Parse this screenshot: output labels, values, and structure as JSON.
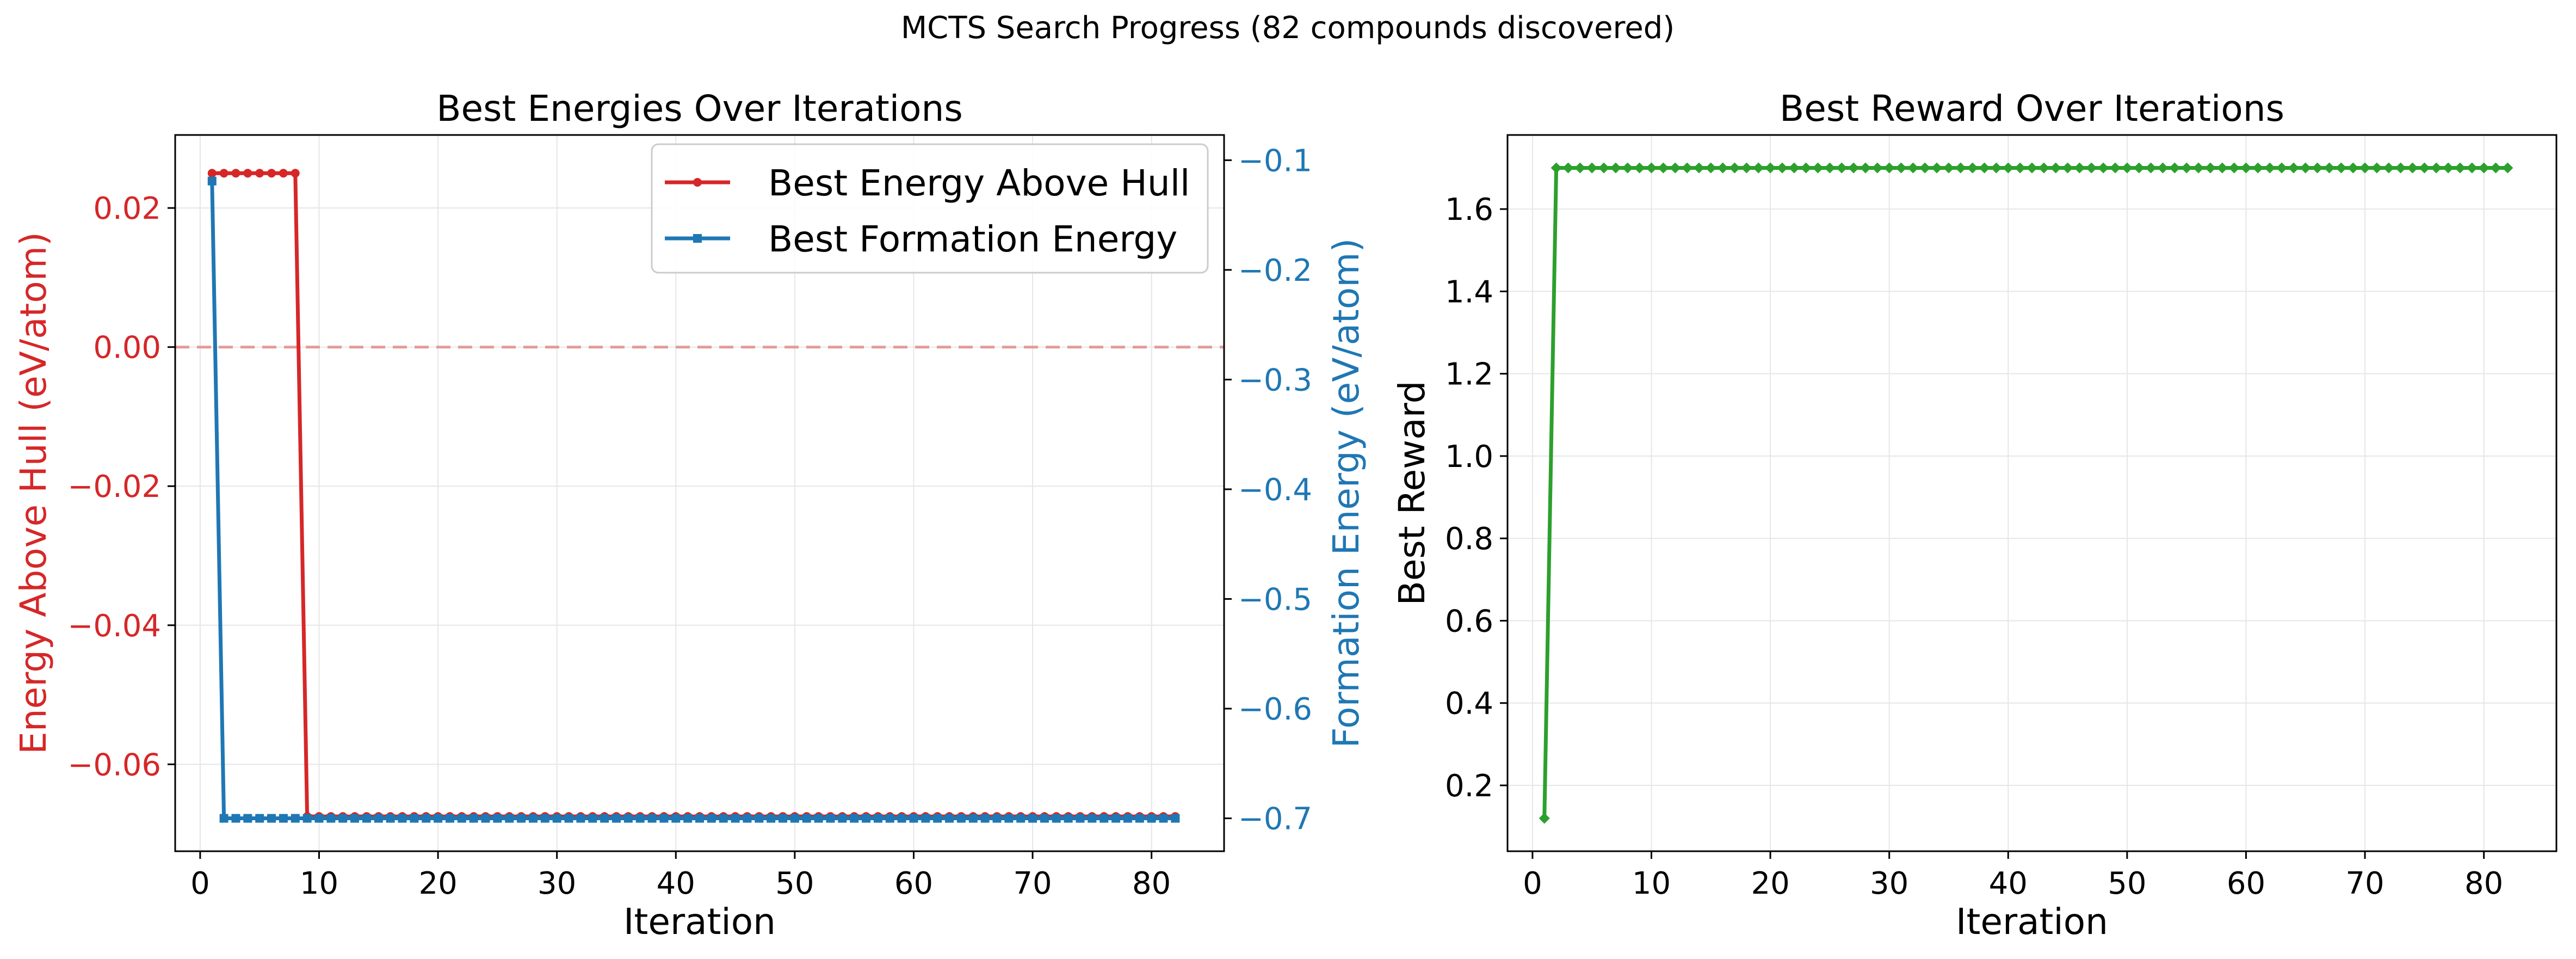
{
  "figure": {
    "suptitle": "MCTS Search Progress (82 compounds discovered)"
  },
  "chart_data": [
    {
      "type": "line",
      "title": "Best Energies Over Iterations",
      "xlabel": "Iteration",
      "ylabel": "Energy Above Hull (eV/atom)",
      "ylabel_right": "Formation Energy (eV/atom)",
      "xlim": [
        -2.1,
        86.1
      ],
      "ylim": [
        -0.0725,
        0.0305
      ],
      "ylim_right": [
        -0.73,
        -0.077
      ],
      "xticks": [
        0,
        10,
        20,
        30,
        40,
        50,
        60,
        70,
        80
      ],
      "yticks": [
        -0.06,
        -0.04,
        -0.02,
        0.0,
        0.02
      ],
      "ytick_labels": [
        "−0.06",
        "−0.04",
        "−0.02",
        "0.00",
        "0.02"
      ],
      "yticks_right": [
        -0.7,
        -0.6,
        -0.5,
        -0.4,
        -0.3,
        -0.2,
        -0.1
      ],
      "ytick_labels_right": [
        "−0.7",
        "−0.6",
        "−0.5",
        "−0.4",
        "−0.3",
        "−0.2",
        "−0.1"
      ],
      "reference_line": {
        "y": 0.0,
        "style": "dashed",
        "color": "#e39a9a"
      },
      "grid": true,
      "legend_position": "top-right",
      "series": [
        {
          "name": "Best Energy Above Hull",
          "axis": "left",
          "color": "#d62728",
          "marker": "circle",
          "segments": [
            {
              "x_from": 1,
              "x_to": 8,
              "value": 0.025
            },
            {
              "x_from": 9,
              "x_to": 82,
              "value": -0.0675
            }
          ]
        },
        {
          "name": "Best Formation Energy",
          "axis": "right",
          "color": "#1f77b4",
          "marker": "square",
          "segments": [
            {
              "x_from": 1,
              "x_to": 1,
              "value": -0.119
            },
            {
              "x_from": 2,
              "x_to": 82,
              "value": -0.7
            }
          ]
        }
      ]
    },
    {
      "type": "line",
      "title": "Best Reward Over Iterations",
      "xlabel": "Iteration",
      "ylabel": "Best Reward",
      "xlim": [
        -2.1,
        86.1
      ],
      "ylim": [
        0.04,
        1.78
      ],
      "xticks": [
        0,
        10,
        20,
        30,
        40,
        50,
        60,
        70,
        80
      ],
      "yticks": [
        0.2,
        0.4,
        0.6,
        0.8,
        1.0,
        1.2,
        1.4,
        1.6
      ],
      "ytick_labels": [
        "0.2",
        "0.4",
        "0.6",
        "0.8",
        "1.0",
        "1.2",
        "1.4",
        "1.6"
      ],
      "grid": true,
      "series": [
        {
          "name": "Best Reward",
          "color": "#2ca02c",
          "marker": "diamond",
          "segments": [
            {
              "x_from": 1,
              "x_to": 1,
              "value": 0.12
            },
            {
              "x_from": 2,
              "x_to": 82,
              "value": 1.7
            }
          ]
        }
      ]
    }
  ]
}
